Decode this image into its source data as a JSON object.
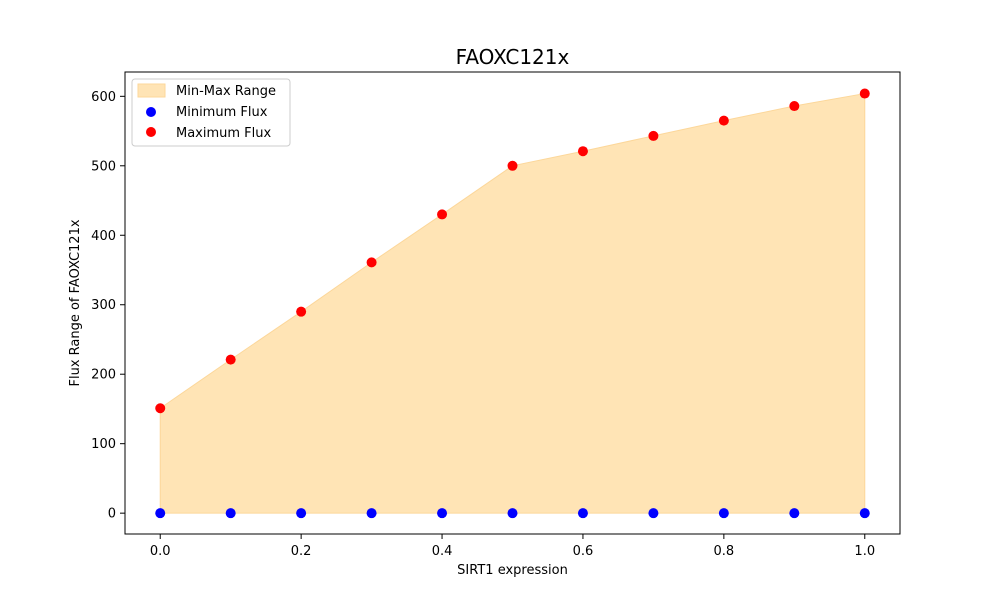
{
  "chart_data": {
    "type": "scatter",
    "title": "FAOXC121x",
    "xlabel": "SIRT1 expression",
    "ylabel": "Flux Range of FAOXC121x",
    "xlim": [
      -0.05,
      1.05
    ],
    "ylim": [
      -30,
      635
    ],
    "x_ticks": [
      0.0,
      0.2,
      0.4,
      0.6,
      0.8,
      1.0
    ],
    "x_tick_labels": [
      "0.0",
      "0.2",
      "0.4",
      "0.6",
      "0.8",
      "1.0"
    ],
    "y_ticks": [
      0,
      100,
      200,
      300,
      400,
      500,
      600
    ],
    "y_tick_labels": [
      "0",
      "100",
      "200",
      "300",
      "400",
      "500",
      "600"
    ],
    "grid": false,
    "legend_position": "top-left",
    "x": [
      0.0,
      0.1,
      0.2,
      0.3,
      0.4,
      0.5,
      0.6,
      0.7,
      0.8,
      0.9,
      1.0
    ],
    "series": [
      {
        "name": "Min-Max Range",
        "kind": "fill_between",
        "color": "#FFE4B5",
        "edge_color": "#FCD79A",
        "lower": [
          0,
          0,
          0,
          0,
          0,
          0,
          0,
          0,
          0,
          0,
          0
        ],
        "upper": [
          151,
          221,
          290,
          361,
          430,
          500,
          521,
          543,
          565,
          586,
          604
        ]
      },
      {
        "name": "Minimum Flux",
        "kind": "scatter",
        "color": "#0000FF",
        "values": [
          0,
          0,
          0,
          0,
          0,
          0,
          0,
          0,
          0,
          0,
          0
        ]
      },
      {
        "name": "Maximum Flux",
        "kind": "scatter",
        "color": "#FF0000",
        "values": [
          151,
          221,
          290,
          361,
          430,
          500,
          521,
          543,
          565,
          586,
          604
        ]
      }
    ]
  }
}
